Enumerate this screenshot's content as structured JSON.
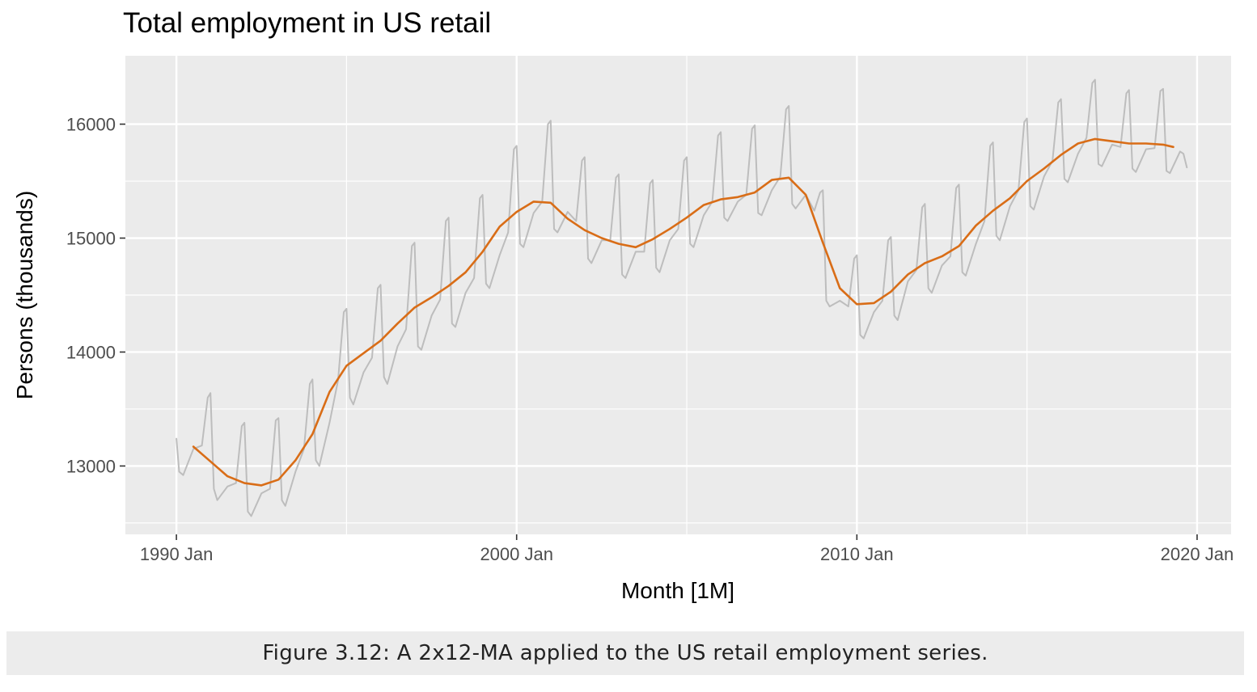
{
  "chart_data": {
    "type": "line",
    "title": "Total employment in US retail",
    "xlabel": "Month [1M]",
    "ylabel": "Persons (thousands)",
    "xlim": [
      1988.5,
      2021.0
    ],
    "ylim": [
      12400,
      16600
    ],
    "x_ticks": [
      {
        "value": 1990,
        "label": "1990 Jan"
      },
      {
        "value": 2000,
        "label": "2000 Jan"
      },
      {
        "value": 2010,
        "label": "2010 Jan"
      },
      {
        "value": 2020,
        "label": "2020 Jan"
      }
    ],
    "x_minor_ticks": [
      1995,
      2005,
      2015
    ],
    "y_ticks": [
      {
        "value": 13000,
        "label": "13000"
      },
      {
        "value": 14000,
        "label": "14000"
      },
      {
        "value": 15000,
        "label": "15000"
      },
      {
        "value": 16000,
        "label": "16000"
      }
    ],
    "y_minor_ticks": [
      12500,
      13500,
      14500,
      15500
    ],
    "grid": true,
    "series": [
      {
        "color": "#bdbdbd",
        "seasonal": true,
        "points": [
          [
            1990.0,
            13240
          ],
          [
            1990.08,
            12950
          ],
          [
            1990.2,
            12920
          ],
          [
            1990.5,
            13150
          ],
          [
            1990.75,
            13180
          ],
          [
            1990.92,
            13600
          ],
          [
            1991.0,
            13640
          ],
          [
            1991.1,
            12800
          ],
          [
            1991.2,
            12700
          ],
          [
            1991.5,
            12820
          ],
          [
            1991.75,
            12850
          ],
          [
            1991.92,
            13350
          ],
          [
            1992.0,
            13380
          ],
          [
            1992.1,
            12600
          ],
          [
            1992.2,
            12560
          ],
          [
            1992.5,
            12760
          ],
          [
            1992.75,
            12800
          ],
          [
            1992.92,
            13400
          ],
          [
            1993.0,
            13420
          ],
          [
            1993.1,
            12700
          ],
          [
            1993.2,
            12650
          ],
          [
            1993.5,
            12950
          ],
          [
            1993.75,
            13150
          ],
          [
            1993.92,
            13720
          ],
          [
            1994.0,
            13760
          ],
          [
            1994.1,
            13050
          ],
          [
            1994.2,
            13000
          ],
          [
            1994.5,
            13380
          ],
          [
            1994.75,
            13750
          ],
          [
            1994.92,
            14350
          ],
          [
            1995.0,
            14380
          ],
          [
            1995.1,
            13600
          ],
          [
            1995.2,
            13540
          ],
          [
            1995.5,
            13820
          ],
          [
            1995.75,
            13950
          ],
          [
            1995.92,
            14560
          ],
          [
            1996.0,
            14590
          ],
          [
            1996.1,
            13780
          ],
          [
            1996.2,
            13720
          ],
          [
            1996.5,
            14050
          ],
          [
            1996.75,
            14200
          ],
          [
            1996.92,
            14930
          ],
          [
            1997.0,
            14960
          ],
          [
            1997.1,
            14050
          ],
          [
            1997.2,
            14020
          ],
          [
            1997.5,
            14320
          ],
          [
            1997.75,
            14460
          ],
          [
            1997.92,
            15150
          ],
          [
            1998.0,
            15180
          ],
          [
            1998.1,
            14250
          ],
          [
            1998.2,
            14220
          ],
          [
            1998.5,
            14520
          ],
          [
            1998.75,
            14650
          ],
          [
            1998.92,
            15350
          ],
          [
            1999.0,
            15380
          ],
          [
            1999.1,
            14600
          ],
          [
            1999.2,
            14560
          ],
          [
            1999.5,
            14850
          ],
          [
            1999.75,
            15050
          ],
          [
            1999.92,
            15780
          ],
          [
            2000.0,
            15810
          ],
          [
            2000.1,
            14950
          ],
          [
            2000.2,
            14920
          ],
          [
            2000.5,
            15220
          ],
          [
            2000.75,
            15320
          ],
          [
            2000.92,
            16000
          ],
          [
            2001.0,
            16030
          ],
          [
            2001.1,
            15080
          ],
          [
            2001.2,
            15050
          ],
          [
            2001.5,
            15230
          ],
          [
            2001.75,
            15150
          ],
          [
            2001.92,
            15680
          ],
          [
            2002.0,
            15710
          ],
          [
            2002.1,
            14820
          ],
          [
            2002.2,
            14780
          ],
          [
            2002.5,
            14980
          ],
          [
            2002.75,
            14980
          ],
          [
            2002.92,
            15530
          ],
          [
            2003.0,
            15560
          ],
          [
            2003.1,
            14680
          ],
          [
            2003.2,
            14650
          ],
          [
            2003.5,
            14880
          ],
          [
            2003.75,
            14880
          ],
          [
            2003.92,
            15480
          ],
          [
            2004.0,
            15510
          ],
          [
            2004.1,
            14740
          ],
          [
            2004.2,
            14700
          ],
          [
            2004.5,
            14980
          ],
          [
            2004.75,
            15080
          ],
          [
            2004.92,
            15680
          ],
          [
            2005.0,
            15710
          ],
          [
            2005.1,
            14950
          ],
          [
            2005.2,
            14920
          ],
          [
            2005.5,
            15200
          ],
          [
            2005.75,
            15320
          ],
          [
            2005.92,
            15900
          ],
          [
            2006.0,
            15930
          ],
          [
            2006.1,
            15180
          ],
          [
            2006.2,
            15150
          ],
          [
            2006.5,
            15320
          ],
          [
            2006.75,
            15380
          ],
          [
            2006.92,
            15960
          ],
          [
            2007.0,
            15990
          ],
          [
            2007.1,
            15220
          ],
          [
            2007.2,
            15200
          ],
          [
            2007.5,
            15420
          ],
          [
            2007.75,
            15540
          ],
          [
            2007.92,
            16130
          ],
          [
            2008.0,
            16160
          ],
          [
            2008.1,
            15300
          ],
          [
            2008.2,
            15260
          ],
          [
            2008.5,
            15380
          ],
          [
            2008.75,
            15240
          ],
          [
            2008.92,
            15400
          ],
          [
            2009.0,
            15420
          ],
          [
            2009.1,
            14450
          ],
          [
            2009.2,
            14400
          ],
          [
            2009.5,
            14450
          ],
          [
            2009.75,
            14400
          ],
          [
            2009.92,
            14820
          ],
          [
            2010.0,
            14850
          ],
          [
            2010.1,
            14150
          ],
          [
            2010.2,
            14120
          ],
          [
            2010.5,
            14350
          ],
          [
            2010.75,
            14450
          ],
          [
            2010.92,
            14980
          ],
          [
            2011.0,
            15010
          ],
          [
            2011.1,
            14320
          ],
          [
            2011.2,
            14280
          ],
          [
            2011.5,
            14620
          ],
          [
            2011.75,
            14720
          ],
          [
            2011.92,
            15270
          ],
          [
            2012.0,
            15300
          ],
          [
            2012.1,
            14560
          ],
          [
            2012.2,
            14520
          ],
          [
            2012.5,
            14760
          ],
          [
            2012.75,
            14840
          ],
          [
            2012.92,
            15440
          ],
          [
            2013.0,
            15470
          ],
          [
            2013.1,
            14700
          ],
          [
            2013.2,
            14670
          ],
          [
            2013.5,
            14950
          ],
          [
            2013.75,
            15150
          ],
          [
            2013.92,
            15810
          ],
          [
            2014.0,
            15840
          ],
          [
            2014.1,
            15020
          ],
          [
            2014.2,
            14980
          ],
          [
            2014.5,
            15280
          ],
          [
            2014.75,
            15420
          ],
          [
            2014.92,
            16020
          ],
          [
            2015.0,
            16050
          ],
          [
            2015.1,
            15280
          ],
          [
            2015.2,
            15250
          ],
          [
            2015.5,
            15540
          ],
          [
            2015.75,
            15680
          ],
          [
            2015.92,
            16190
          ],
          [
            2016.0,
            16220
          ],
          [
            2016.1,
            15520
          ],
          [
            2016.2,
            15490
          ],
          [
            2016.5,
            15740
          ],
          [
            2016.75,
            15880
          ],
          [
            2016.92,
            16360
          ],
          [
            2017.0,
            16390
          ],
          [
            2017.1,
            15650
          ],
          [
            2017.2,
            15630
          ],
          [
            2017.5,
            15820
          ],
          [
            2017.75,
            15800
          ],
          [
            2017.92,
            16270
          ],
          [
            2018.0,
            16300
          ],
          [
            2018.1,
            15610
          ],
          [
            2018.2,
            15580
          ],
          [
            2018.5,
            15780
          ],
          [
            2018.75,
            15790
          ],
          [
            2018.92,
            16290
          ],
          [
            2019.0,
            16310
          ],
          [
            2019.1,
            15590
          ],
          [
            2019.2,
            15570
          ],
          [
            2019.5,
            15760
          ],
          [
            2019.6,
            15740
          ],
          [
            2019.7,
            15620
          ]
        ]
      },
      {
        "color": "#d96d17",
        "points": [
          [
            1990.5,
            13170
          ],
          [
            1991.0,
            13040
          ],
          [
            1991.5,
            12910
          ],
          [
            1992.0,
            12850
          ],
          [
            1992.5,
            12830
          ],
          [
            1993.0,
            12880
          ],
          [
            1993.5,
            13050
          ],
          [
            1994.0,
            13280
          ],
          [
            1994.5,
            13650
          ],
          [
            1995.0,
            13880
          ],
          [
            1995.5,
            13990
          ],
          [
            1996.0,
            14100
          ],
          [
            1996.5,
            14250
          ],
          [
            1997.0,
            14390
          ],
          [
            1997.5,
            14480
          ],
          [
            1998.0,
            14580
          ],
          [
            1998.5,
            14700
          ],
          [
            1999.0,
            14880
          ],
          [
            1999.5,
            15100
          ],
          [
            2000.0,
            15230
          ],
          [
            2000.5,
            15320
          ],
          [
            2001.0,
            15310
          ],
          [
            2001.5,
            15170
          ],
          [
            2002.0,
            15070
          ],
          [
            2002.5,
            15000
          ],
          [
            2003.0,
            14950
          ],
          [
            2003.5,
            14920
          ],
          [
            2004.0,
            14990
          ],
          [
            2004.5,
            15080
          ],
          [
            2005.0,
            15180
          ],
          [
            2005.5,
            15290
          ],
          [
            2006.0,
            15340
          ],
          [
            2006.5,
            15360
          ],
          [
            2007.0,
            15400
          ],
          [
            2007.5,
            15510
          ],
          [
            2008.0,
            15530
          ],
          [
            2008.5,
            15380
          ],
          [
            2009.0,
            14960
          ],
          [
            2009.5,
            14560
          ],
          [
            2010.0,
            14420
          ],
          [
            2010.5,
            14430
          ],
          [
            2011.0,
            14530
          ],
          [
            2011.5,
            14680
          ],
          [
            2012.0,
            14780
          ],
          [
            2012.5,
            14840
          ],
          [
            2013.0,
            14930
          ],
          [
            2013.5,
            15110
          ],
          [
            2014.0,
            15240
          ],
          [
            2014.5,
            15350
          ],
          [
            2015.0,
            15500
          ],
          [
            2015.5,
            15610
          ],
          [
            2016.0,
            15730
          ],
          [
            2016.5,
            15830
          ],
          [
            2017.0,
            15870
          ],
          [
            2017.5,
            15850
          ],
          [
            2018.0,
            15830
          ],
          [
            2018.5,
            15830
          ],
          [
            2019.0,
            15820
          ],
          [
            2019.3,
            15800
          ]
        ]
      }
    ]
  },
  "caption": {
    "text": "Figure 3.12: A 2x12-MA applied to the US retail employment series."
  }
}
